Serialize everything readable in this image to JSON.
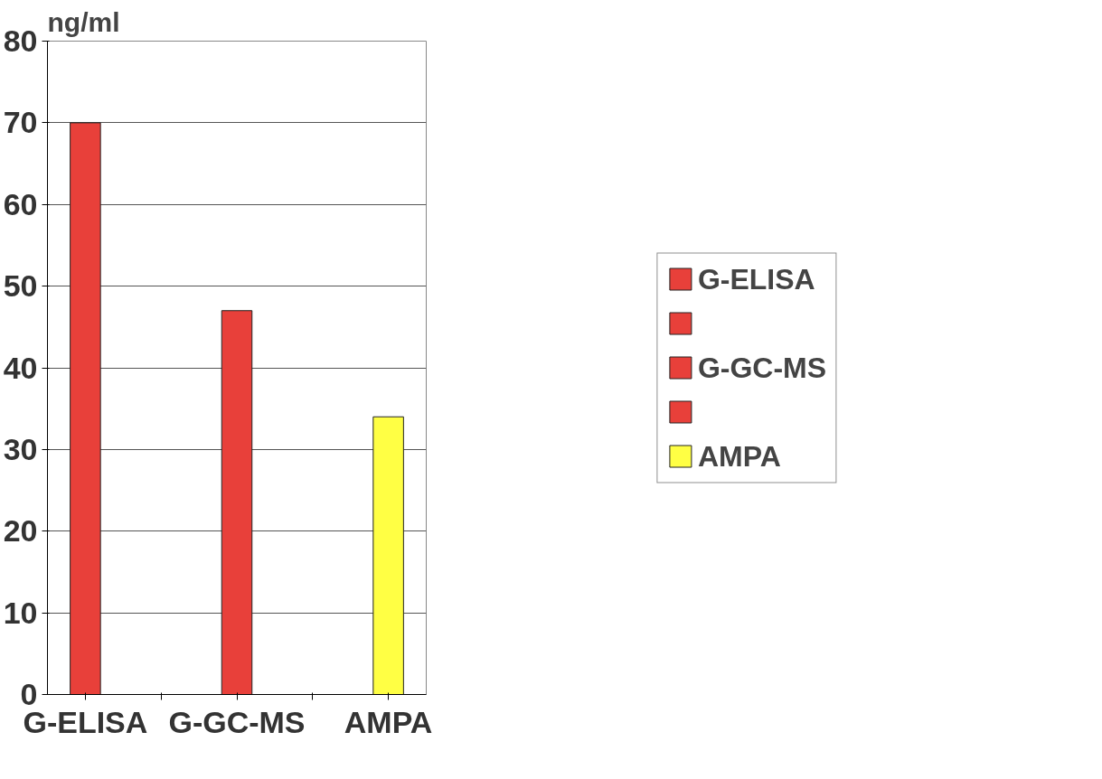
{
  "chart_data": {
    "type": "bar",
    "ylabel": "ng/ml",
    "categories": [
      "G-ELISA",
      null,
      "G-GC-MS",
      null,
      "AMPA"
    ],
    "series": [
      {
        "name": "G-ELISA",
        "color": "#e8403a",
        "values": [
          70,
          null,
          null,
          null,
          null
        ]
      },
      {
        "color": "#e8403a",
        "values": [
          null,
          null,
          null,
          null,
          null
        ]
      },
      {
        "name": "G-GC-MS",
        "color": "#e8403a",
        "values": [
          null,
          null,
          47,
          null,
          null
        ]
      },
      {
        "color": "#e8403a",
        "values": [
          null,
          null,
          null,
          null,
          null
        ]
      },
      {
        "name": "AMPA",
        "color": "#ffff44",
        "values": [
          null,
          null,
          null,
          null,
          34
        ]
      }
    ],
    "ylim": [
      0,
      80
    ],
    "yticks": [
      0,
      10,
      20,
      30,
      40,
      50,
      60,
      70,
      80
    ],
    "grid": "y",
    "legend": "right"
  }
}
